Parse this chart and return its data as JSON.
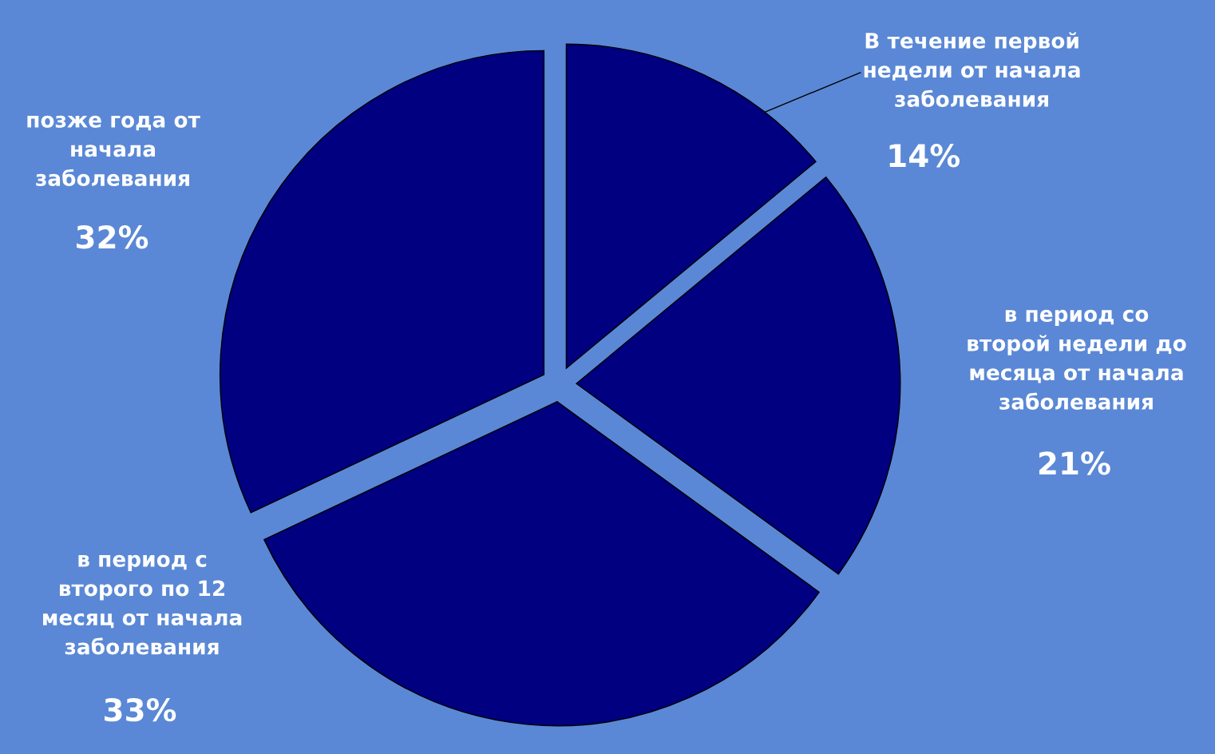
{
  "chart_data": {
    "type": "pie",
    "categories": [
      "В течение первой\nнедели от начала\nзаболевания",
      "в период со\nвторой недели до\nмесяца от начала\nзаболевания",
      "в период с\nвторого по 12\nмесяц от начала\nзаболевания",
      "позже года от\nначала\nзаболевания"
    ],
    "values": [
      14,
      21,
      33,
      32
    ],
    "value_labels": [
      "14%",
      "21%",
      "33%",
      "32%"
    ],
    "colors": [
      "#000080",
      "#000080",
      "#000080",
      "#000080"
    ]
  }
}
